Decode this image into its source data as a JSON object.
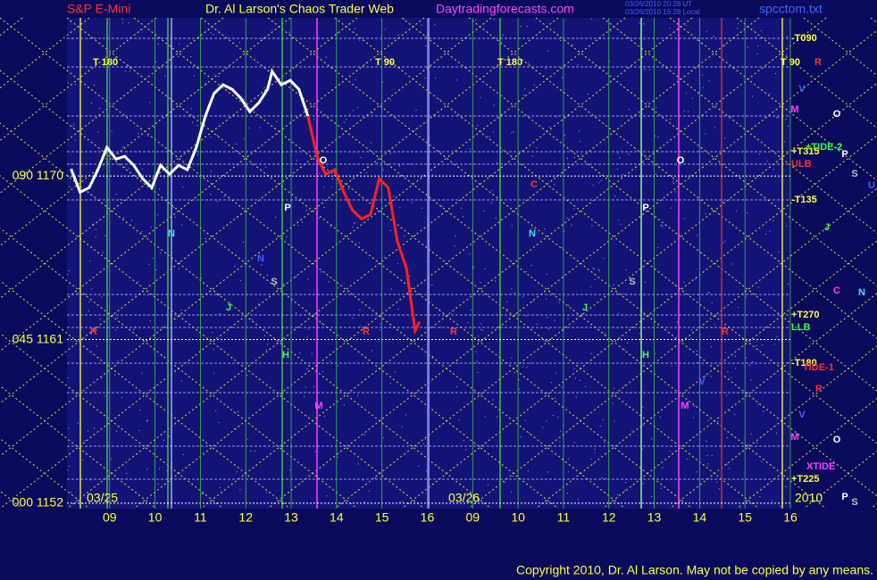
{
  "chart_data": {
    "type": "line",
    "instrument": "S&P E-Mini",
    "title": "Dr. Al Larson's Chaos Trader Web",
    "site": "Daytradingforecasts.com",
    "timestamps": [
      "03/26/2010 20:28 UT",
      "03/26/2010 16:28 Local"
    ],
    "file": "spcctom.txt",
    "copyright": "Copyright 2010, Dr. Al Larson. May not be copied by any means.",
    "date_labels": [
      "03/25",
      "03/26",
      "2010"
    ],
    "cycle_labels": [
      "T  180",
      "T  90",
      "T  180",
      "T  90"
    ],
    "level_labels": [
      "-T090",
      "+T315",
      "-T135",
      "+T270",
      "-T180",
      "+T225"
    ],
    "tide_labels": [
      "+TIDE-2",
      "ULB",
      "LLB",
      "TIDE-1",
      "XTIDE"
    ],
    "annotations": [
      "R",
      "N",
      "P",
      "S",
      "H",
      "M",
      "O",
      "R",
      "C",
      "N",
      "R",
      "J",
      "H",
      "S",
      "P",
      "M",
      "O",
      "V",
      "R",
      "J",
      "C",
      "N",
      "R",
      "V",
      "M",
      "O",
      "P",
      "S",
      "U",
      "R",
      "V",
      "M",
      "O",
      "P",
      "S",
      "J",
      "N"
    ],
    "ylim": [
      1151.7,
      1178.7
    ],
    "yticks": [
      {
        "value": 1152,
        "label": "000 1152"
      },
      {
        "value": 1161,
        "label": "045 1161"
      },
      {
        "value": 1170,
        "label": "090 1170"
      }
    ],
    "xlim": [
      -0.94,
      15
    ],
    "xticks": [
      {
        "value": 0,
        "label": "09"
      },
      {
        "value": 1,
        "label": "10"
      },
      {
        "value": 2,
        "label": "11"
      },
      {
        "value": 3,
        "label": "12"
      },
      {
        "value": 4,
        "label": "13"
      },
      {
        "value": 5,
        "label": "14"
      },
      {
        "value": 6,
        "label": "15"
      },
      {
        "value": 7,
        "label": "16"
      },
      {
        "value": 8,
        "label": "09"
      },
      {
        "value": 9,
        "label": "10"
      },
      {
        "value": 10,
        "label": "11"
      },
      {
        "value": 11,
        "label": "12"
      },
      {
        "value": 12,
        "label": "13"
      },
      {
        "value": 13,
        "label": "14"
      },
      {
        "value": 14,
        "label": "15"
      },
      {
        "value": 15,
        "label": "16"
      }
    ],
    "grid": true,
    "x": [
      -0.85,
      -0.65,
      -0.45,
      -0.26,
      -0.06,
      0.14,
      0.33,
      0.53,
      0.73,
      0.93,
      1.12,
      1.32,
      1.52,
      1.71,
      1.91,
      2.11,
      2.3,
      2.5,
      2.7,
      2.89,
      3.09,
      3.29,
      3.48,
      3.58,
      3.78,
      3.98,
      4.17,
      4.37,
      4.57,
      4.76,
      4.96,
      5.16,
      5.35,
      5.55,
      5.75,
      5.94,
      6.14,
      6.34,
      6.54,
      6.73,
      6.83
    ],
    "series": [
      {
        "color": "#ffffff",
        "values": [
          1170.39,
          1169.11,
          1169.36,
          1170.34,
          1171.57,
          1170.93,
          1171.08,
          1170.59,
          1169.85,
          1169.36,
          1170.59,
          1170.1,
          1170.59,
          1170.34,
          1171.57,
          1173.3,
          1174.53,
          1175.02,
          1174.77,
          1174.28,
          1173.54,
          1174.03,
          1174.77,
          1175.76,
          1175.02,
          1175.26,
          1174.77,
          1173.3,
          null,
          null,
          null,
          null,
          null,
          null,
          null,
          null,
          null,
          null,
          null,
          null,
          null
        ]
      },
      {
        "color": "#ff2020",
        "values": [
          null,
          null,
          null,
          null,
          null,
          null,
          null,
          null,
          null,
          null,
          null,
          null,
          null,
          null,
          null,
          null,
          null,
          null,
          null,
          null,
          null,
          null,
          null,
          null,
          null,
          null,
          null,
          1173.3,
          1171.08,
          1170.1,
          1170.34,
          1169.11,
          1168.13,
          1167.64,
          1167.88,
          1169.85,
          1169.36,
          1166.41,
          1164.93,
          1161.49,
          1161.98
        ]
      }
    ]
  }
}
